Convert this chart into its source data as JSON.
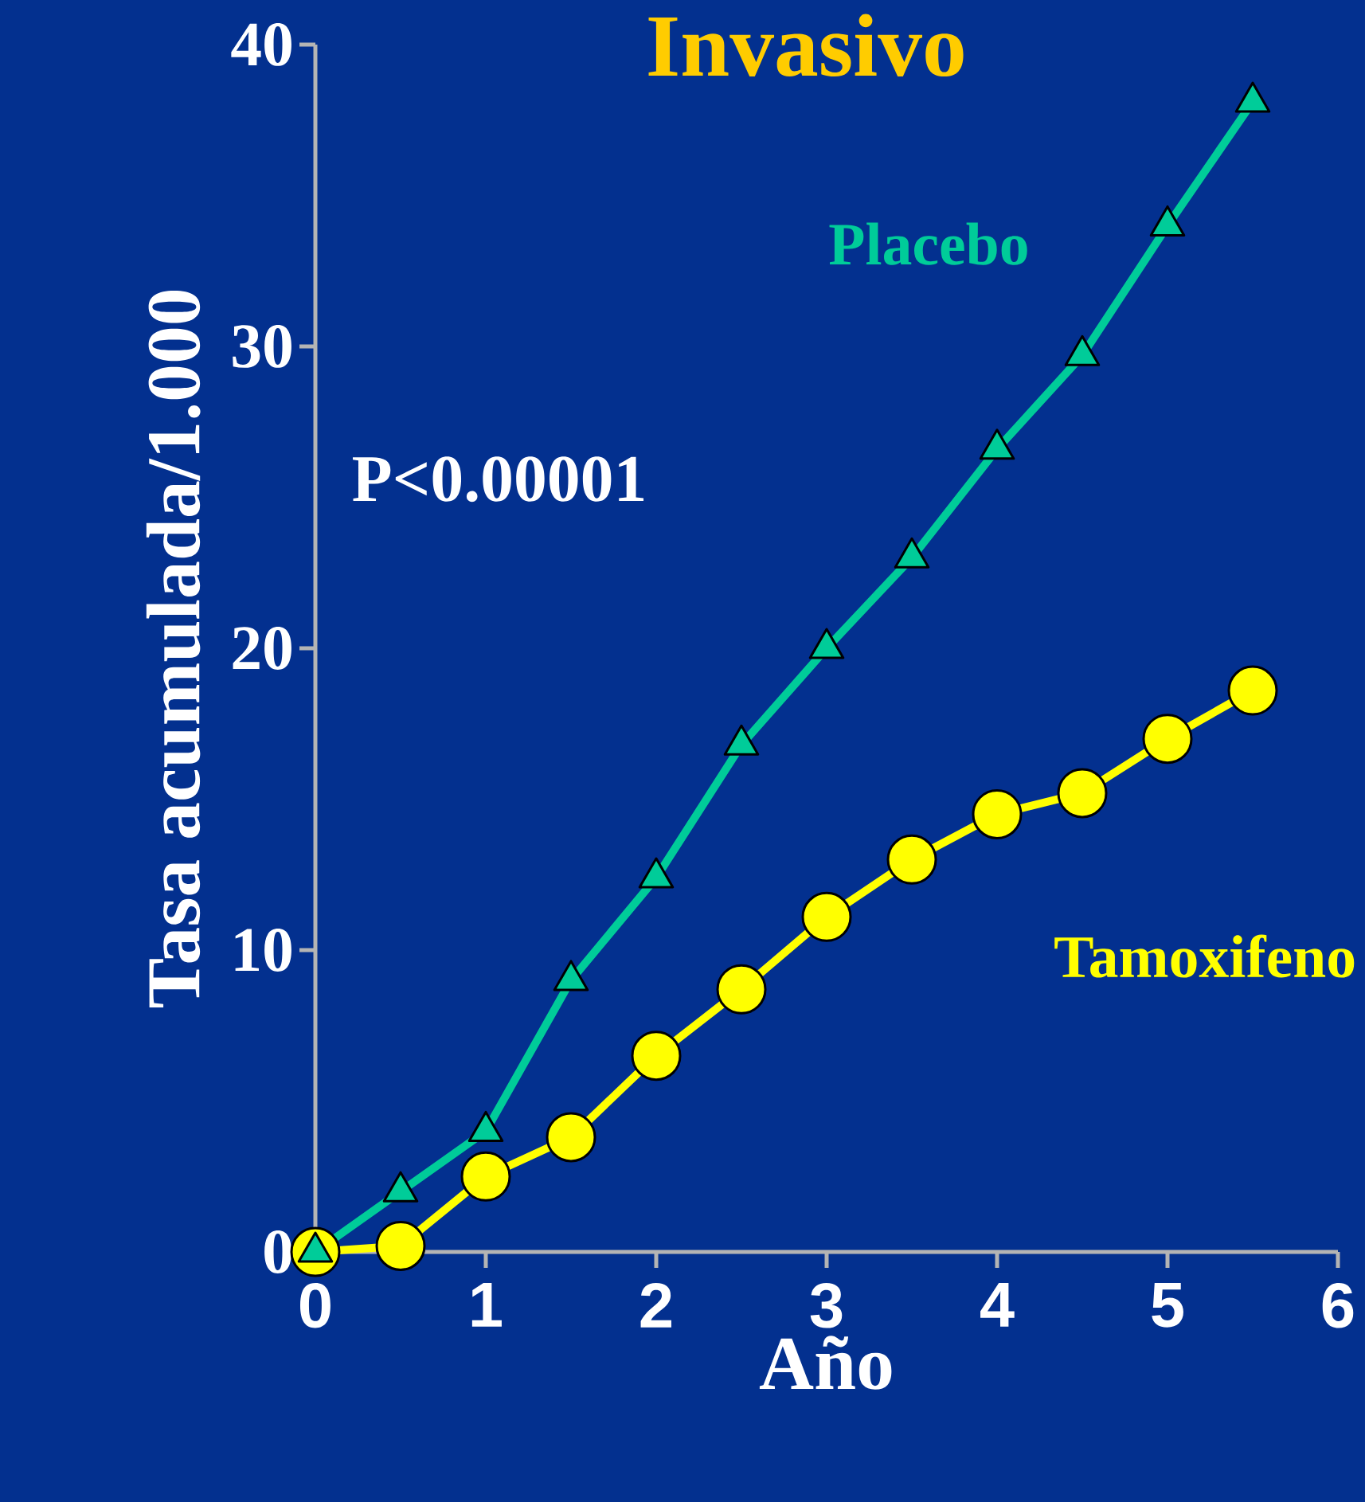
{
  "chart_data": {
    "type": "line",
    "title": "Invasivo",
    "xlabel": "Año",
    "ylabel": "Tasa acumulada/1.000",
    "xlim": [
      0,
      6
    ],
    "ylim": [
      0,
      40
    ],
    "xticks": [
      0,
      1,
      2,
      3,
      4,
      5,
      6
    ],
    "yticks": [
      0,
      10,
      20,
      30,
      40
    ],
    "grid": false,
    "annotations": [
      "P<0.00001"
    ],
    "series": [
      {
        "name": "Placebo",
        "color": "#00cc99",
        "marker": "triangle",
        "x": [
          0,
          0.5,
          1,
          1.5,
          2,
          2.5,
          3,
          3.5,
          4,
          4.5,
          5,
          5.5
        ],
        "values": [
          0,
          2.0,
          4.0,
          9.0,
          12.4,
          16.8,
          20.0,
          23.0,
          26.6,
          29.7,
          34.0,
          38.1
        ]
      },
      {
        "name": "Tamoxifeno",
        "color": "#ffff00",
        "marker": "circle",
        "x": [
          0,
          0.5,
          1,
          1.5,
          2,
          2.5,
          3,
          3.5,
          4,
          4.5,
          5,
          5.5
        ],
        "values": [
          0,
          0.2,
          2.5,
          3.8,
          6.5,
          8.7,
          11.1,
          13.0,
          14.5,
          15.2,
          17.0,
          18.6
        ]
      }
    ]
  }
}
